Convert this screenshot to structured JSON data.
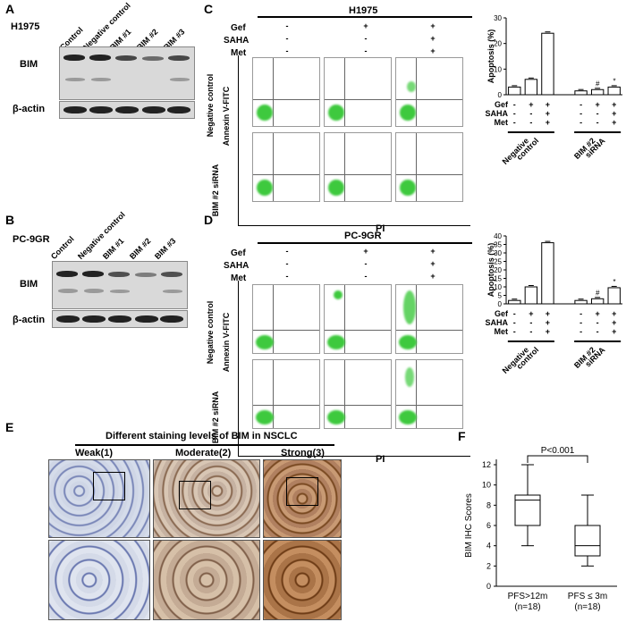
{
  "panel_a": {
    "letter": "A",
    "cell_line": "H1975",
    "lanes": [
      "Control",
      "Negative control",
      "BIM #1",
      "BIM #2",
      "BIM #3"
    ],
    "row_labels": [
      "BIM",
      "β-actin"
    ]
  },
  "panel_b": {
    "letter": "B",
    "cell_line": "PC-9GR",
    "lanes": [
      "Control",
      "Negative control",
      "BIM #1",
      "BIM #2",
      "BIM #3"
    ],
    "row_labels": [
      "BIM",
      "β-actin"
    ]
  },
  "panel_c": {
    "letter": "C",
    "cell_line": "H1975",
    "treat_labels": [
      "Gef",
      "SAHA",
      "Met"
    ],
    "treat_signs": [
      [
        "-",
        "+",
        "+"
      ],
      [
        "-",
        "-",
        "+"
      ],
      [
        "-",
        "-",
        "+"
      ]
    ],
    "row_labels": [
      "Negative control",
      "BIM #2 siRNA"
    ],
    "y_axis": "Annexin V-FITC",
    "x_axis": "PI"
  },
  "panel_d": {
    "letter": "D",
    "cell_line": "PC-9GR",
    "treat_labels": [
      "Gef",
      "SAHA",
      "Met"
    ],
    "treat_signs": [
      [
        "-",
        "+",
        "+"
      ],
      [
        "-",
        "-",
        "+"
      ],
      [
        "-",
        "-",
        "+"
      ]
    ],
    "row_labels": [
      "Negative control",
      "BIM #2 siRNA"
    ],
    "y_axis": "Annexin V-FITC",
    "x_axis": "PI"
  },
  "panel_e": {
    "letter": "E",
    "title": "Different staining levels of BIM in NSCLC",
    "levels": [
      "Weak(1)",
      "Moderate(2)",
      "Strong(3)"
    ]
  },
  "panel_f": {
    "letter": "F"
  },
  "chart_data": [
    {
      "type": "bar",
      "panel": "C",
      "ylabel": "Apoptosis (%)",
      "ylim": [
        0,
        30
      ],
      "yticks": [
        0,
        10,
        20,
        30
      ],
      "values": [
        3,
        6,
        24,
        1.5,
        2,
        3
      ],
      "annotations": [
        "",
        "",
        "",
        "",
        "#",
        "*"
      ],
      "treat_labels": [
        "Gef",
        "SAHA",
        "Met"
      ],
      "treat_signs": [
        [
          "-",
          "+",
          "+",
          "-",
          "+",
          "+"
        ],
        [
          "-",
          "-",
          "+",
          "-",
          "-",
          "+"
        ],
        [
          "-",
          "-",
          "+",
          "-",
          "-",
          "+"
        ]
      ],
      "groups": [
        "Negative control",
        "BIM #2 siRNA"
      ]
    },
    {
      "type": "bar",
      "panel": "D",
      "ylabel": "Apoptosis (%)",
      "ylim": [
        0,
        40
      ],
      "yticks": [
        0,
        5,
        10,
        15,
        20,
        25,
        30,
        35,
        40
      ],
      "values": [
        2,
        10,
        36,
        2,
        3,
        9.5
      ],
      "annotations": [
        "",
        "",
        "",
        "",
        "#",
        "*"
      ],
      "treat_labels": [
        "Gef",
        "SAHA",
        "Met"
      ],
      "treat_signs": [
        [
          "-",
          "+",
          "+",
          "-",
          "+",
          "+"
        ],
        [
          "-",
          "-",
          "+",
          "-",
          "-",
          "+"
        ],
        [
          "-",
          "-",
          "+",
          "-",
          "-",
          "+"
        ]
      ],
      "groups": [
        "Negative control",
        "BIM #2 siRNA"
      ]
    },
    {
      "type": "box",
      "panel": "F",
      "ylabel": "BIM IHC Scores",
      "ylim": [
        0,
        12
      ],
      "yticks": [
        0,
        2,
        4,
        6,
        8,
        10,
        12
      ],
      "pvalue": "P<0.001",
      "categories": [
        "PFS>12m\n(n=18)",
        "PFS ≤ 3m\n(n=18)"
      ],
      "boxes": [
        {
          "min": 4,
          "q1": 6,
          "median": 8.5,
          "q3": 9,
          "max": 12
        },
        {
          "min": 2,
          "q1": 3,
          "median": 4,
          "q3": 6,
          "max": 9
        }
      ]
    }
  ]
}
